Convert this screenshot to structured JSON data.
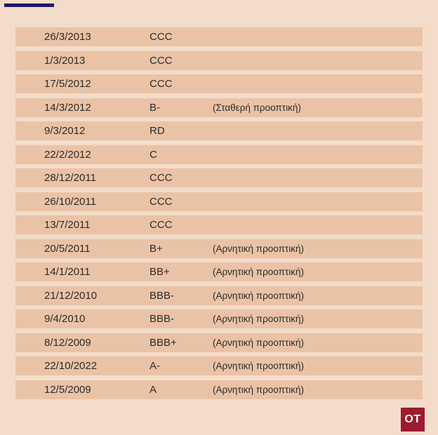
{
  "theme": {
    "background": "#f3dcc9",
    "row_background": "#eac3a7",
    "text": "#2e2b28",
    "accent_line": "#1e1867",
    "logo_background": "#9c1b31",
    "logo_text_color": "#ffffff"
  },
  "logo": {
    "label": "OT"
  },
  "chart_data": {
    "type": "table",
    "columns": [
      "date",
      "rating",
      "outlook"
    ],
    "layout": {
      "header_visible": false,
      "accent_line": "top-left",
      "logo": "bottom-right"
    },
    "rows": [
      {
        "date": "26/3/2013",
        "rating": "CCC",
        "outlook": ""
      },
      {
        "date": "1/3/2013",
        "rating": "CCC",
        "outlook": ""
      },
      {
        "date": "17/5/2012",
        "rating": "CCC",
        "outlook": ""
      },
      {
        "date": "14/3/2012",
        "rating": "B-",
        "outlook": "(Σταθερή προοπτική)"
      },
      {
        "date": "9/3/2012",
        "rating": "RD",
        "outlook": ""
      },
      {
        "date": "22/2/2012",
        "rating": "C",
        "outlook": ""
      },
      {
        "date": "28/12/2011",
        "rating": "CCC",
        "outlook": ""
      },
      {
        "date": "26/10/2011",
        "rating": "CCC",
        "outlook": ""
      },
      {
        "date": "13/7/2011",
        "rating": "CCC",
        "outlook": ""
      },
      {
        "date": "20/5/2011",
        "rating": "B+",
        "outlook": "(Αρνητική προοπτική)"
      },
      {
        "date": "14/1/2011",
        "rating": "BB+",
        "outlook": "(Αρνητική προοπτική)"
      },
      {
        "date": "21/12/2010",
        "rating": "BBB-",
        "outlook": "(Αρνητική προοπτική)"
      },
      {
        "date": "9/4/2010",
        "rating": "BBB-",
        "outlook": "(Αρνητική προοπτική)"
      },
      {
        "date": "8/12/2009",
        "rating": "BBB+",
        "outlook": "(Αρνητική προοπτική)"
      },
      {
        "date": "22/10/2022",
        "rating": "A-",
        "outlook": "(Αρνητική προοπτική)"
      },
      {
        "date": "12/5/2009",
        "rating": "A",
        "outlook": "(Αρνητική προοπτική)"
      }
    ]
  }
}
